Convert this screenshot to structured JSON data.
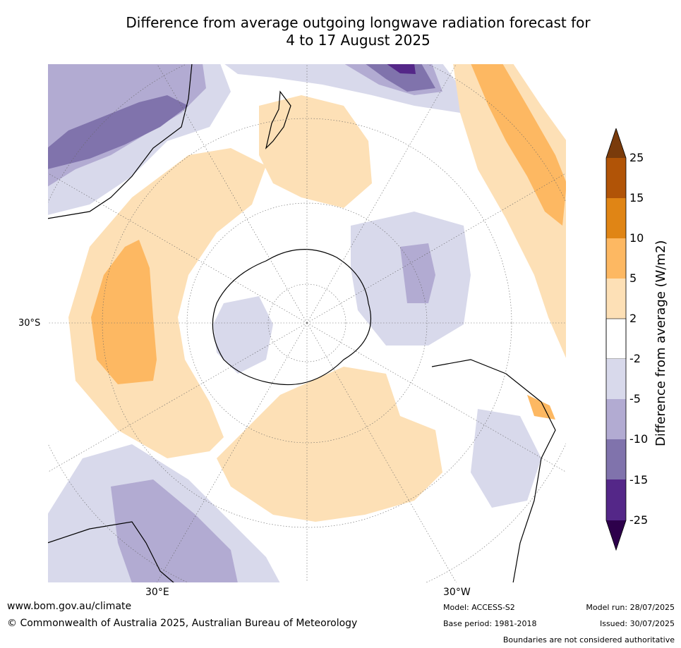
{
  "title": {
    "line1": "Difference from average outgoing longwave radiation forecast for",
    "line2": "4 to 17 August 2025"
  },
  "map": {
    "projection": "south-polar stereographic",
    "latitude_labels": [
      "30°S"
    ],
    "longitude_labels": [
      "30°E",
      "30°W"
    ]
  },
  "legend": {
    "title": "Difference from average (W/m2)",
    "ticks": [
      "25",
      "15",
      "10",
      "5",
      "2",
      "-2",
      "-5",
      "-10",
      "-15",
      "-25"
    ],
    "colors": [
      "#7a3b0b",
      "#b15407",
      "#e08515",
      "#fdb862",
      "#fde0b6",
      "#ffffff",
      "#d8d9eb",
      "#b2abd2",
      "#8073ac",
      "#542788",
      "#2d004b"
    ],
    "extends": "both"
  },
  "footer": {
    "website": "www.bom.gov.au/climate",
    "copyright": "© Commonwealth of Australia 2025, Australian Bureau of Meteorology",
    "model": "Model: ACCESS-S2",
    "base_period": "Base period: 1981-2018",
    "model_run": "Model run: 28/07/2025",
    "issued": "Issued: 30/07/2025",
    "disclaimer": "Boundaries are not considered authoritative"
  }
}
